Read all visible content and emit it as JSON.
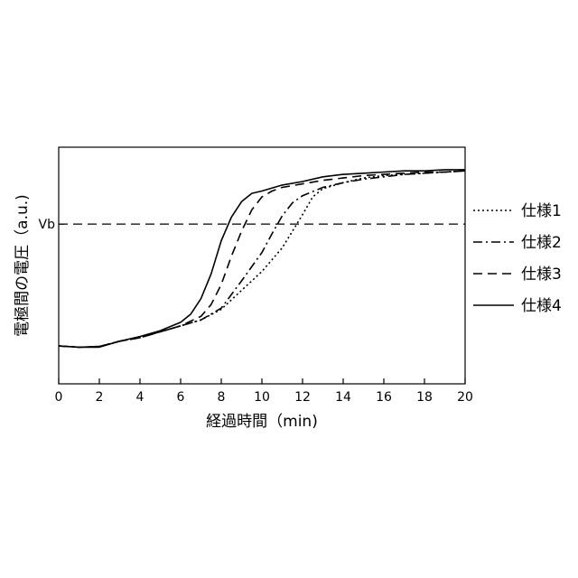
{
  "chart_data": {
    "type": "line",
    "title": "",
    "xlabel": "経過時間（min)",
    "ylabel": "電極間の電圧（a.u.)",
    "xlim": [
      0,
      20
    ],
    "ylim": [
      0,
      1
    ],
    "y_scale": "arbitrary units, no tick values",
    "grid": false,
    "legend_position": "right",
    "xticks": [
      0,
      2,
      4,
      6,
      8,
      10,
      12,
      14,
      16,
      18,
      20
    ],
    "reference_line": {
      "label": "Vb",
      "y": 0.675,
      "style": "dashed"
    },
    "series": [
      {
        "name": "仕様1",
        "style": "dotted",
        "x": [
          0,
          1,
          2,
          3,
          4,
          5,
          6,
          7,
          8,
          9,
          10,
          11,
          11.5,
          12,
          12.5,
          13,
          14,
          15,
          16,
          17,
          18,
          19,
          20
        ],
        "y": [
          0.16,
          0.155,
          0.158,
          0.18,
          0.195,
          0.22,
          0.245,
          0.27,
          0.315,
          0.395,
          0.475,
          0.575,
          0.645,
          0.715,
          0.79,
          0.825,
          0.85,
          0.87,
          0.88,
          0.885,
          0.89,
          0.895,
          0.9
        ]
      },
      {
        "name": "仕様2",
        "style": "dashdot",
        "x": [
          0,
          1,
          2,
          3,
          4,
          5,
          6,
          7,
          8,
          9,
          10,
          10.5,
          11,
          11.5,
          12,
          13,
          14,
          15,
          16,
          17,
          18,
          19,
          20
        ],
        "y": [
          0.16,
          0.155,
          0.158,
          0.18,
          0.195,
          0.22,
          0.245,
          0.27,
          0.32,
          0.435,
          0.555,
          0.635,
          0.71,
          0.765,
          0.795,
          0.83,
          0.85,
          0.865,
          0.875,
          0.885,
          0.89,
          0.895,
          0.9
        ]
      },
      {
        "name": "仕様3",
        "style": "dashed",
        "x": [
          0,
          1,
          2,
          3,
          4,
          5,
          6,
          7,
          7.5,
          8,
          8.5,
          9,
          9.5,
          10,
          10.5,
          11,
          12,
          13,
          14,
          15,
          16,
          17,
          18,
          19,
          20
        ],
        "y": [
          0.16,
          0.155,
          0.158,
          0.18,
          0.195,
          0.22,
          0.245,
          0.285,
          0.335,
          0.42,
          0.54,
          0.645,
          0.735,
          0.79,
          0.815,
          0.83,
          0.845,
          0.86,
          0.87,
          0.88,
          0.885,
          0.89,
          0.895,
          0.895,
          0.9
        ]
      },
      {
        "name": "仕様4",
        "style": "solid",
        "x": [
          0,
          1,
          2,
          3,
          4,
          5,
          6,
          6.5,
          7,
          7.5,
          8,
          8.5,
          9,
          9.5,
          10,
          11,
          12,
          13,
          14,
          15,
          16,
          17,
          18,
          19,
          20
        ],
        "y": [
          0.16,
          0.155,
          0.155,
          0.18,
          0.2,
          0.225,
          0.26,
          0.295,
          0.36,
          0.465,
          0.605,
          0.705,
          0.77,
          0.805,
          0.815,
          0.84,
          0.855,
          0.875,
          0.885,
          0.89,
          0.895,
          0.9,
          0.9,
          0.905,
          0.905
        ]
      }
    ]
  }
}
